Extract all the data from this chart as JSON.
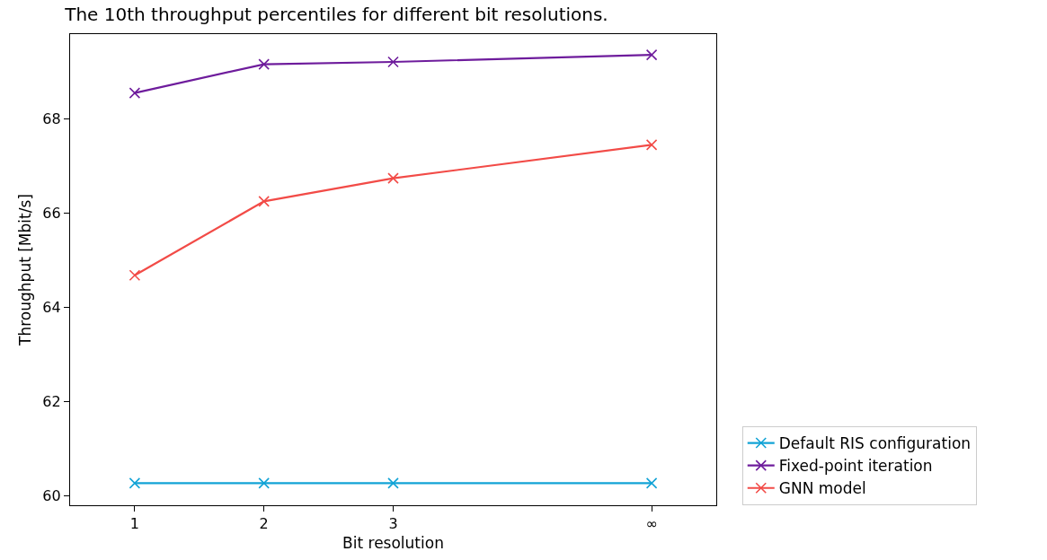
{
  "chart_data": {
    "type": "line",
    "title": "The 10th throughput percentiles for different bit resolutions.",
    "xlabel": "Bit resolution",
    "ylabel": "Throughput [Mbit/s]",
    "x": [
      1,
      2,
      3,
      5
    ],
    "xlim": [
      0.5,
      5.5
    ],
    "xticks": [
      1,
      2,
      3,
      {
        "value": 5,
        "label": "∞"
      }
    ],
    "ylim": [
      59.8,
      69.8
    ],
    "yticks": [
      60,
      62,
      64,
      66,
      68
    ],
    "series": [
      {
        "name": "Default RIS configuration",
        "color": "#12a3d6",
        "values": [
          60.27,
          60.27,
          60.27,
          60.27
        ]
      },
      {
        "name": "Fixed-point iteration",
        "color": "#6e1c9c",
        "values": [
          68.55,
          69.16,
          69.21,
          69.36
        ]
      },
      {
        "name": "GNN model",
        "color": "#f24b47",
        "values": [
          64.68,
          66.25,
          66.74,
          67.45
        ]
      }
    ],
    "marker": "cross",
    "legend": "bottom right"
  }
}
